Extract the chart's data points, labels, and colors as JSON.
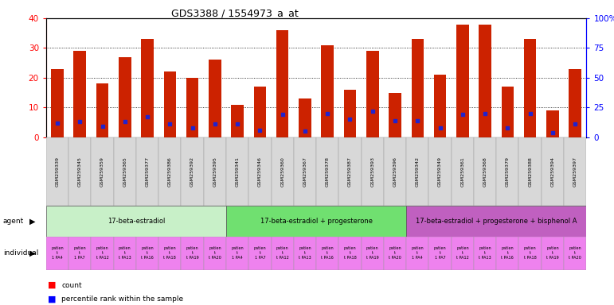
{
  "title": "GDS3388 / 1554973_a_at",
  "gsm_labels": [
    "GSM259339",
    "GSM259345",
    "GSM259359",
    "GSM259365",
    "GSM259377",
    "GSM259386",
    "GSM259392",
    "GSM259395",
    "GSM259341",
    "GSM259346",
    "GSM259360",
    "GSM259367",
    "GSM259378",
    "GSM259387",
    "GSM259393",
    "GSM259396",
    "GSM259342",
    "GSM259349",
    "GSM259361",
    "GSM259368",
    "GSM259379",
    "GSM259388",
    "GSM259394",
    "GSM259397"
  ],
  "count_values": [
    23,
    29,
    18,
    27,
    33,
    22,
    20,
    26,
    11,
    17,
    36,
    13,
    31,
    16,
    29,
    15,
    33,
    21,
    38,
    38,
    17,
    33,
    9,
    23
  ],
  "percentile_values": [
    12,
    13.5,
    9,
    13,
    17,
    11,
    8,
    11,
    11,
    6,
    19,
    5,
    20,
    15,
    22,
    14,
    14,
    8,
    19,
    20,
    8,
    20,
    4,
    11
  ],
  "agent_groups": [
    {
      "label": "17-beta-estradiol",
      "start": 0,
      "end": 8,
      "color": "#C8F0C8"
    },
    {
      "label": "17-beta-estradiol + progesterone",
      "start": 8,
      "end": 16,
      "color": "#70E070"
    },
    {
      "label": "17-beta-estradiol + progesterone + bisphenol A",
      "start": 16,
      "end": 24,
      "color": "#C060C0"
    }
  ],
  "individual_labels_line1": [
    "patien",
    "patien",
    "patien",
    "patien",
    "patien",
    "patien",
    "patien",
    "patien",
    "patien",
    "patien",
    "patien",
    "patien",
    "patien",
    "patien",
    "patien",
    "patien",
    "patien",
    "patien",
    "patien",
    "patien",
    "patien",
    "patien",
    "patien",
    "patien"
  ],
  "individual_labels_line2": [
    "t",
    "t",
    "t",
    "t",
    "t",
    "t",
    "t",
    "t",
    "t",
    "t",
    "t",
    "t",
    "t",
    "t",
    "t",
    "t",
    "t",
    "t",
    "t",
    "t",
    "t",
    "t",
    "t",
    "t"
  ],
  "individual_labels_line3": [
    "1 PA4",
    "1 PA7",
    "t PA12",
    "t PA13",
    "t PA16",
    "t PA18",
    "t PA19",
    "t PA20",
    "1 PA4",
    "1 PA7",
    "t PA12",
    "t PA13",
    "t PA16",
    "t PA18",
    "t PA19",
    "t PA20",
    "1 PA4",
    "1 PA7",
    "t PA12",
    "t PA13",
    "t PA16",
    "t PA18",
    "t PA19",
    "t PA20"
  ],
  "bar_color": "#CC2200",
  "percentile_color": "#2222CC",
  "ylim_left": [
    0,
    40
  ],
  "ylim_right": [
    0,
    100
  ],
  "yticks_left": [
    0,
    10,
    20,
    30,
    40
  ],
  "yticks_right": [
    0,
    25,
    50,
    75,
    100
  ],
  "ytick_labels_right": [
    "0",
    "25",
    "50",
    "75",
    "100%"
  ],
  "bar_width": 0.55
}
